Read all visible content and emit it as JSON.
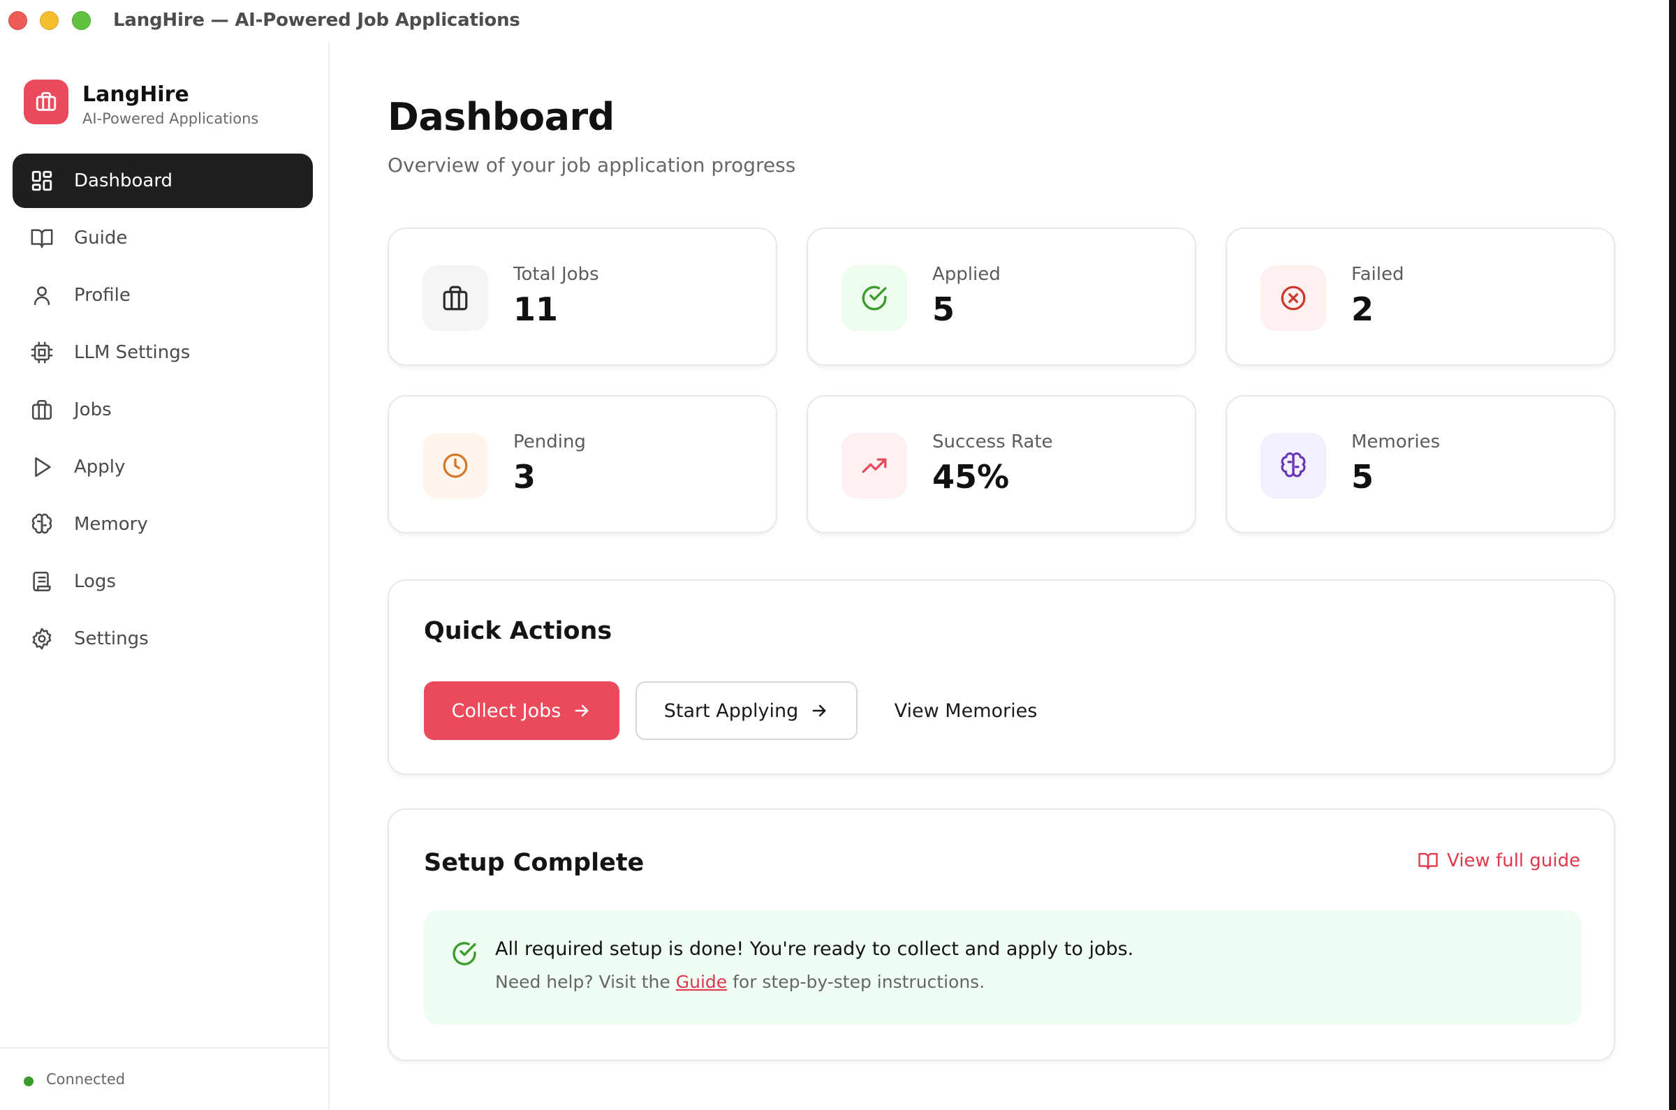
{
  "window": {
    "title": "LangHire — AI-Powered Job Applications"
  },
  "brand": {
    "name": "LangHire",
    "tagline": "AI-Powered Applications",
    "logo_icon": "briefcase-icon",
    "accent_color": "#e94b5d"
  },
  "sidebar": {
    "items": [
      {
        "label": "Dashboard",
        "icon": "dashboard-grid-icon",
        "active": true
      },
      {
        "label": "Guide",
        "icon": "book-open-icon",
        "active": false
      },
      {
        "label": "Profile",
        "icon": "user-icon",
        "active": false
      },
      {
        "label": "LLM Settings",
        "icon": "cpu-chip-icon",
        "active": false
      },
      {
        "label": "Jobs",
        "icon": "briefcase-icon",
        "active": false
      },
      {
        "label": "Apply",
        "icon": "play-icon",
        "active": false
      },
      {
        "label": "Memory",
        "icon": "brain-icon",
        "active": false
      },
      {
        "label": "Logs",
        "icon": "scroll-icon",
        "active": false
      },
      {
        "label": "Settings",
        "icon": "gear-icon",
        "active": false
      }
    ],
    "status": {
      "label": "Connected",
      "color": "#3a9a2c"
    }
  },
  "main": {
    "title": "Dashboard",
    "subtitle": "Overview of your job application progress",
    "stats": [
      {
        "label": "Total Jobs",
        "value": "11",
        "icon": "briefcase-icon",
        "icon_color": "#2b2b2b",
        "icon_bg": "#f4f4f4"
      },
      {
        "label": "Applied",
        "value": "5",
        "icon": "check-circle-icon",
        "icon_color": "#3a9a2c",
        "icon_bg": "#eefcee"
      },
      {
        "label": "Failed",
        "value": "2",
        "icon": "x-circle-icon",
        "icon_color": "#c93a2c",
        "icon_bg": "#fdf0ef"
      },
      {
        "label": "Pending",
        "value": "3",
        "icon": "clock-icon",
        "icon_color": "#d5782a",
        "icon_bg": "#fff5ec"
      },
      {
        "label": "Success Rate",
        "value": "45%",
        "icon": "trending-up-icon",
        "icon_color": "#e94b5d",
        "icon_bg": "#fdf0f1"
      },
      {
        "label": "Memories",
        "value": "5",
        "icon": "brain-icon",
        "icon_color": "#6b35b8",
        "icon_bg": "#f3effc"
      }
    ],
    "quick_actions": {
      "title": "Quick Actions",
      "collect_label": "Collect Jobs",
      "apply_label": "Start Applying",
      "memories_label": "View Memories"
    },
    "setup": {
      "title": "Setup Complete",
      "guide_link": "View full guide",
      "message": "All required setup is done! You're ready to collect and apply to jobs.",
      "help_prefix": "Need help? Visit the ",
      "help_link": "Guide",
      "help_suffix": " for step-by-step instructions."
    }
  }
}
